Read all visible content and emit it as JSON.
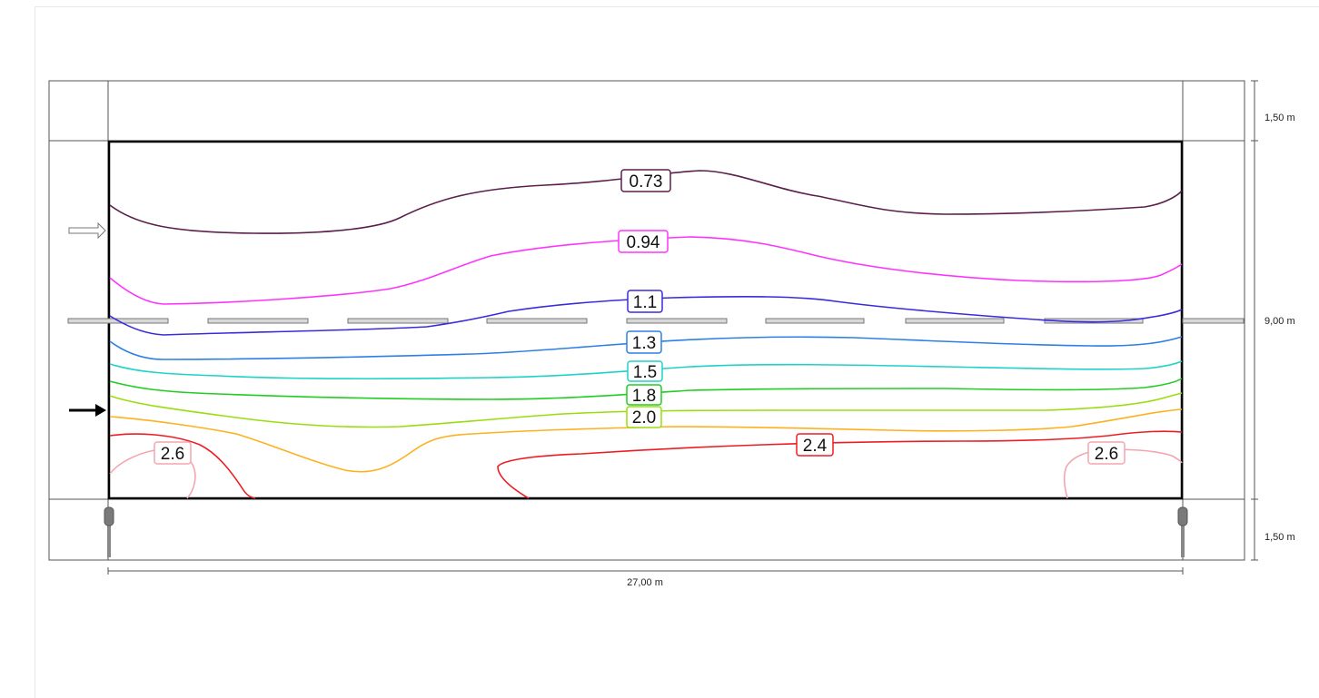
{
  "colors": {
    "c073": "#5a1f4a",
    "c094": "#ff33ff",
    "c11": "#3a2bdc",
    "c13": "#2d7fe6",
    "c15": "#1ed2c8",
    "c18": "#22cc22",
    "c20": "#99dd11",
    "c22": "#ffb020",
    "c24": "#ee1c24",
    "c26": "#f4a6b0"
  },
  "icons": {
    "arrow_outline": "arrow-right-outline-icon",
    "arrow_solid": "arrow-right-solid-icon",
    "luminaire": "pole-luminaire-icon"
  },
  "dimensions": {
    "top_verge": "1,50 m",
    "carriageway": "9,00 m",
    "bottom_verge": "1,50 m",
    "length": "27,00 m"
  },
  "contours": [
    {
      "id": "c073",
      "label": "0.73"
    },
    {
      "id": "c094",
      "label": "0.94"
    },
    {
      "id": "c11",
      "label": "1.1"
    },
    {
      "id": "c13",
      "label": "1.3"
    },
    {
      "id": "c15",
      "label": "1.5"
    },
    {
      "id": "c18",
      "label": "1.8"
    },
    {
      "id": "c20",
      "label": "2.0"
    },
    {
      "id": "c24",
      "label": "2.4"
    },
    {
      "id": "c26a",
      "label": "2.6"
    },
    {
      "id": "c26b",
      "label": "2.6"
    }
  ]
}
